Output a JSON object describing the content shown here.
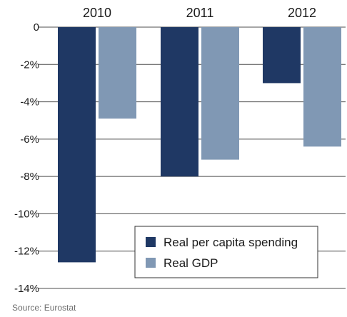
{
  "chart_data": {
    "type": "bar",
    "categories": [
      "2010",
      "2011",
      "2012"
    ],
    "series": [
      {
        "name": "Real per capita spending",
        "values": [
          -12.6,
          -8.0,
          -3.0
        ],
        "color": "#1f3864"
      },
      {
        "name": "Real GDP",
        "values": [
          -4.9,
          -7.1,
          -6.4
        ],
        "color": "#8098b4"
      }
    ],
    "yticks": [
      "0",
      "-2%",
      "-4%",
      "-6%",
      "-8%",
      "-10%",
      "-12%",
      "-14%"
    ],
    "ylim": [
      -14,
      0
    ],
    "category_axis_position": "top",
    "legend_position": "lower-right",
    "grid": false
  },
  "source": "Source: Eurostat"
}
